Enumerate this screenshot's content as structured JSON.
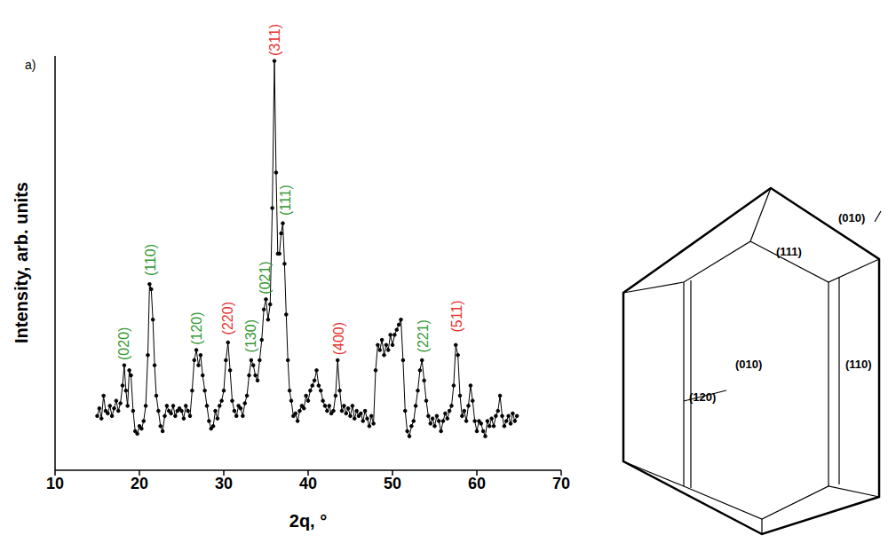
{
  "chart_data": {
    "type": "line",
    "panel_label": "a)",
    "xlabel": "2q, °",
    "ylabel": "Intensity, arb. units",
    "xlim": [
      10,
      70
    ],
    "xticks": [
      10,
      20,
      30,
      40,
      50,
      60,
      70
    ],
    "ylim": [
      0.33,
      8.5
    ],
    "yticks": [
      1,
      2,
      3,
      4,
      5,
      6,
      7,
      8
    ],
    "tick_labels": "x",
    "grid": false,
    "color": "#000000",
    "marker": "circle",
    "line_style": "solid",
    "x": [
      15.0,
      15.25,
      15.5,
      15.75,
      16.0,
      16.25,
      16.5,
      16.75,
      17.0,
      17.25,
      17.5,
      17.75,
      18.0,
      18.2,
      18.4,
      18.6,
      18.8,
      19.0,
      19.25,
      19.5,
      19.75,
      20.0,
      20.25,
      20.5,
      20.75,
      21.0,
      21.2,
      21.4,
      21.6,
      21.8,
      22.0,
      22.25,
      22.5,
      22.75,
      23.0,
      23.25,
      23.5,
      23.75,
      24.0,
      24.25,
      24.5,
      24.75,
      25.0,
      25.25,
      25.5,
      25.75,
      26.0,
      26.25,
      26.5,
      26.75,
      27.0,
      27.25,
      27.5,
      27.75,
      28.0,
      28.25,
      28.5,
      28.75,
      29.0,
      29.25,
      29.5,
      29.75,
      30.0,
      30.25,
      30.5,
      30.75,
      31.0,
      31.25,
      31.5,
      31.75,
      32.0,
      32.25,
      32.5,
      32.75,
      33.0,
      33.25,
      33.5,
      33.75,
      34.0,
      34.25,
      34.5,
      34.75,
      35.0,
      35.25,
      35.5,
      35.75,
      36.0,
      36.2,
      36.4,
      36.6,
      36.8,
      37.0,
      37.2,
      37.4,
      37.6,
      37.8,
      38.0,
      38.25,
      38.5,
      38.75,
      39.0,
      39.25,
      39.5,
      39.75,
      40.0,
      40.25,
      40.5,
      40.75,
      41.0,
      41.25,
      41.5,
      41.75,
      42.0,
      42.25,
      42.5,
      42.75,
      43.0,
      43.25,
      43.5,
      43.75,
      44.0,
      44.25,
      44.5,
      44.75,
      45.0,
      45.25,
      45.5,
      45.75,
      46.0,
      46.25,
      46.5,
      46.75,
      47.0,
      47.25,
      47.5,
      47.75,
      48.0,
      48.25,
      48.5,
      48.75,
      49.0,
      49.25,
      49.5,
      49.75,
      50.0,
      50.25,
      50.5,
      50.75,
      51.0,
      51.25,
      51.5,
      51.75,
      52.0,
      52.25,
      52.5,
      52.75,
      53.0,
      53.25,
      53.5,
      53.75,
      54.0,
      54.25,
      54.5,
      54.75,
      55.0,
      55.25,
      55.5,
      55.75,
      56.0,
      56.25,
      56.5,
      56.75,
      57.0,
      57.25,
      57.5,
      57.75,
      58.0,
      58.25,
      58.5,
      58.75,
      59.0,
      59.25,
      59.5,
      59.75,
      60.0,
      60.25,
      60.5,
      60.75,
      61.0,
      61.25,
      61.5,
      61.75,
      62.0,
      62.25,
      62.5,
      62.75,
      63.0,
      63.25,
      63.5,
      63.75,
      64.0,
      64.25,
      64.5,
      64.75
    ],
    "values": [
      1.4,
      1.55,
      1.35,
      1.8,
      1.5,
      1.45,
      1.6,
      1.4,
      1.55,
      1.7,
      1.5,
      1.65,
      2.0,
      2.4,
      1.9,
      1.6,
      2.3,
      2.2,
      1.5,
      1.1,
      1.05,
      1.2,
      1.15,
      1.3,
      1.6,
      2.6,
      4.0,
      3.9,
      3.3,
      2.4,
      1.8,
      1.5,
      1.2,
      1.1,
      1.4,
      1.6,
      1.5,
      1.45,
      1.6,
      1.4,
      1.5,
      1.55,
      1.5,
      1.35,
      1.6,
      1.5,
      1.4,
      1.9,
      2.5,
      2.7,
      2.4,
      2.6,
      2.2,
      1.9,
      1.6,
      1.3,
      1.15,
      1.2,
      1.5,
      1.35,
      1.6,
      1.7,
      1.9,
      2.5,
      2.85,
      2.3,
      1.7,
      1.5,
      1.4,
      1.6,
      1.55,
      1.4,
      1.65,
      1.8,
      2.2,
      2.5,
      2.4,
      2.2,
      2.1,
      2.5,
      2.9,
      3.5,
      3.7,
      3.3,
      3.6,
      5.5,
      8.4,
      6.2,
      4.6,
      4.6,
      5.0,
      5.2,
      4.4,
      3.4,
      2.5,
      1.9,
      1.7,
      1.4,
      1.45,
      1.3,
      1.5,
      1.6,
      1.55,
      1.8,
      1.7,
      1.9,
      2.0,
      2.1,
      2.3,
      2.0,
      1.9,
      1.7,
      1.6,
      1.5,
      1.6,
      1.45,
      1.5,
      1.8,
      2.5,
      1.9,
      1.5,
      1.6,
      1.45,
      1.55,
      1.4,
      1.6,
      1.35,
      1.5,
      1.4,
      1.45,
      1.3,
      1.5,
      1.35,
      1.2,
      1.4,
      1.25,
      2.3,
      2.8,
      2.7,
      2.9,
      2.6,
      2.8,
      2.7,
      3.0,
      2.8,
      3.0,
      3.1,
      3.2,
      3.3,
      2.5,
      1.5,
      1.1,
      1.0,
      1.2,
      1.3,
      1.6,
      1.9,
      2.3,
      2.5,
      2.1,
      1.7,
      1.4,
      1.25,
      1.35,
      1.2,
      1.4,
      1.3,
      1.1,
      1.3,
      1.45,
      1.35,
      1.5,
      1.6,
      2.0,
      2.8,
      2.6,
      1.8,
      1.4,
      1.5,
      1.3,
      1.6,
      2.0,
      1.7,
      1.3,
      1.1,
      1.3,
      1.25,
      1.1,
      1.0,
      1.3,
      1.2,
      1.35,
      1.2,
      1.4,
      1.5,
      1.8,
      1.4,
      1.2,
      1.3,
      1.4,
      1.25,
      1.45,
      1.3,
      1.4
    ],
    "annotations": [
      {
        "text": "(020)",
        "x": 18.2,
        "y": 2.5,
        "color": "#339933"
      },
      {
        "text": "(110)",
        "x": 21.3,
        "y": 4.16,
        "color": "#339933"
      },
      {
        "text": "(120)",
        "x": 26.8,
        "y": 2.8,
        "color": "#339933"
      },
      {
        "text": "(220)",
        "x": 30.5,
        "y": 3.0,
        "color": "#e8312f"
      },
      {
        "text": "(130)",
        "x": 33.2,
        "y": 2.65,
        "color": "#339933"
      },
      {
        "text": "(021)",
        "x": 34.9,
        "y": 3.8,
        "color": "#339933"
      },
      {
        "text": "(311)",
        "x": 36.0,
        "y": 8.5,
        "color": "#e8312f"
      },
      {
        "text": "(111)",
        "x": 37.3,
        "y": 5.35,
        "color": "#339933"
      },
      {
        "text": "(400)",
        "x": 43.6,
        "y": 2.6,
        "color": "#e8312f"
      },
      {
        "text": "(221)",
        "x": 53.6,
        "y": 2.65,
        "color": "#339933"
      },
      {
        "text": "(511)",
        "x": 57.6,
        "y": 3.05,
        "color": "#e8312f"
      }
    ]
  },
  "diagram": {
    "face_labels": [
      "(010)",
      "(111)",
      "(010)",
      "(110)",
      "(120)"
    ]
  }
}
